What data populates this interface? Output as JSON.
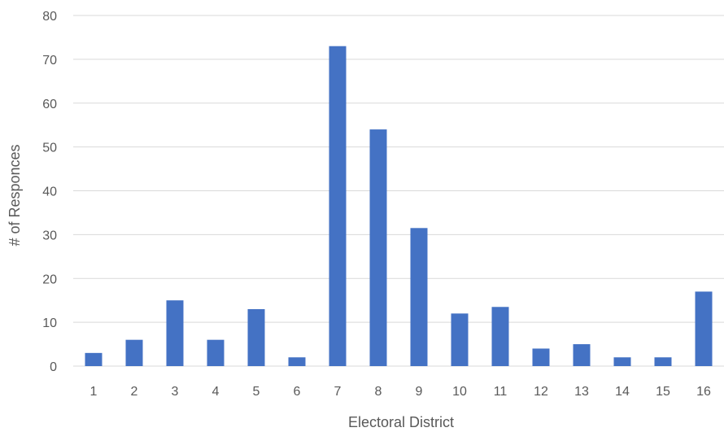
{
  "chart_data": {
    "type": "bar",
    "categories": [
      "1",
      "2",
      "3",
      "4",
      "5",
      "6",
      "7",
      "8",
      "9",
      "10",
      "11",
      "12",
      "13",
      "14",
      "15",
      "16"
    ],
    "values": [
      3,
      6,
      15,
      6,
      13,
      2,
      73,
      54,
      31.5,
      12,
      13.5,
      4,
      5,
      2,
      2,
      17
    ],
    "xlabel": "Electoral District",
    "ylabel": "# of Responces",
    "ylim": [
      0,
      80
    ],
    "yticks": [
      0,
      10,
      20,
      30,
      40,
      50,
      60,
      70,
      80
    ],
    "grid": true,
    "bar_color": "#4472c4"
  }
}
